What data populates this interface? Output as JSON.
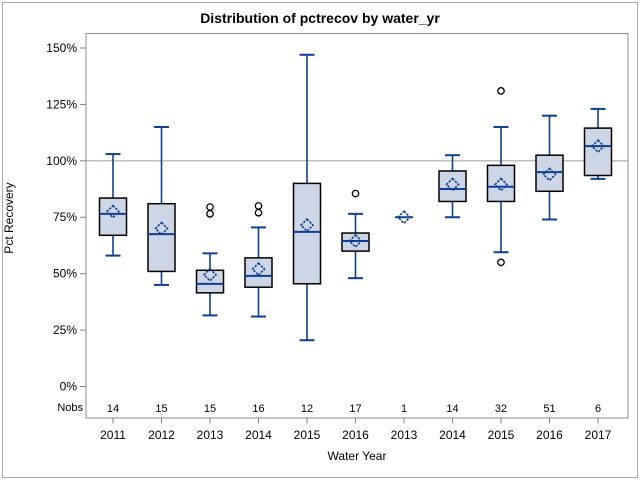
{
  "title": "Distribution of pctrecov by water_yr",
  "y_axis": {
    "label": "Pct Recovery"
  },
  "x_axis": {
    "label": "Water Year"
  },
  "nobs_label": "Nobs",
  "colors": {
    "box_fill": "#cdd6e7",
    "box_stroke": "#000000",
    "line_blue": "#0f3f94",
    "reference_line": "#a9a9a9",
    "plot_border": "#8c8c8c",
    "tick": "#808080",
    "text": "#000000",
    "outlier_stroke": "#000000"
  },
  "chart_data": {
    "type": "boxplot",
    "title": "Distribution of pctrecov by water_yr",
    "xlabel": "Water Year",
    "ylabel": "Pct Recovery",
    "ylim": [
      -14,
      156
    ],
    "yticks": [
      0,
      25,
      50,
      75,
      100,
      125,
      150
    ],
    "ytick_suffix": "%",
    "grid": false,
    "legend": false,
    "reference_line": 100,
    "groups": [
      {
        "year": "2011",
        "nobs": "14",
        "low": 58,
        "q1": 67,
        "median": 76.5,
        "q3": 83.5,
        "high": 103,
        "mean": 77.5,
        "outliers": []
      },
      {
        "year": "2012",
        "nobs": "15",
        "low": 45,
        "q1": 51,
        "median": 67.5,
        "q3": 81,
        "high": 115,
        "mean": 70,
        "outliers": []
      },
      {
        "year": "2013",
        "nobs": "15",
        "low": 31.5,
        "q1": 41.5,
        "median": 45.5,
        "q3": 51.5,
        "high": 59,
        "mean": 49.5,
        "outliers": [
          79.5,
          76.5
        ]
      },
      {
        "year": "2014",
        "nobs": "16",
        "low": 31,
        "q1": 44,
        "median": 49,
        "q3": 57,
        "high": 70.5,
        "mean": 52,
        "outliers": [
          80,
          77
        ]
      },
      {
        "year": "2015",
        "nobs": "12",
        "low": 20.5,
        "q1": 45.5,
        "median": 68.5,
        "q3": 90,
        "high": 147,
        "mean": 71.5,
        "outliers": []
      },
      {
        "year": "2016",
        "nobs": "17",
        "low": 48,
        "q1": 60,
        "median": 64.5,
        "q3": 68,
        "high": 76.5,
        "mean": 64.5,
        "outliers": [
          85.5
        ]
      },
      {
        "year": "2013",
        "nobs": "1",
        "low": 75,
        "q1": 75,
        "median": 75,
        "q3": 75,
        "high": 75,
        "mean": 75,
        "outliers": []
      },
      {
        "year": "2014",
        "nobs": "14",
        "low": 75,
        "q1": 82,
        "median": 87.5,
        "q3": 95.5,
        "high": 102.5,
        "mean": 89.5,
        "outliers": []
      },
      {
        "year": "2015",
        "nobs": "32",
        "low": 59.5,
        "q1": 82,
        "median": 88.5,
        "q3": 98,
        "high": 115,
        "mean": 89.5,
        "outliers": [
          131,
          55
        ]
      },
      {
        "year": "2016",
        "nobs": "51",
        "low": 74,
        "q1": 86.5,
        "median": 95,
        "q3": 102.5,
        "high": 120,
        "mean": 94,
        "outliers": []
      },
      {
        "year": "2017",
        "nobs": "6",
        "low": 92,
        "q1": 93.5,
        "median": 106.5,
        "q3": 114.5,
        "high": 123,
        "mean": 106.5,
        "outliers": []
      }
    ]
  }
}
